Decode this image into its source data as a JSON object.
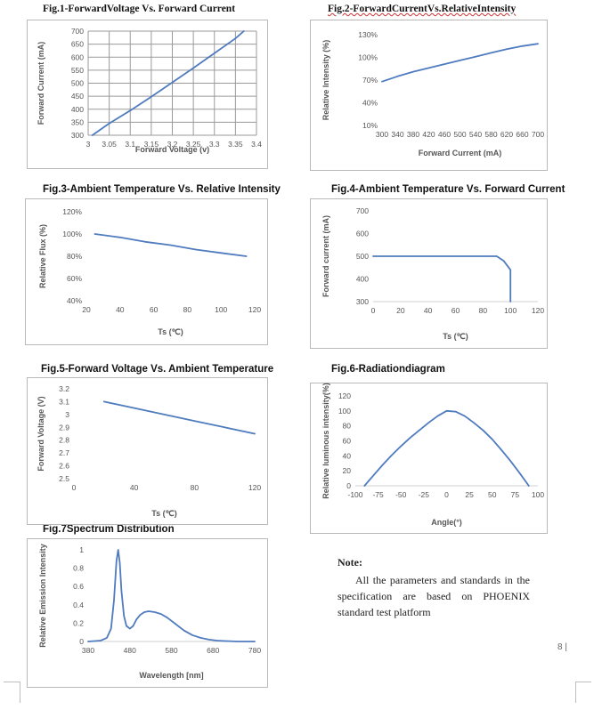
{
  "figures": {
    "fig1": {
      "title": "Fig.1-ForwardVoltage Vs. Forward Current"
    },
    "fig2": {
      "title": "Fig.2-ForwardCurrentVs.RelativeIntensity"
    },
    "fig3": {
      "title": "Fig.3-Ambient Temperature Vs. Relative Intensity"
    },
    "fig4": {
      "title": "Fig.4-Ambient Temperature Vs. Forward Current"
    },
    "fig5": {
      "title": "Fig.5-Forward Voltage Vs. Ambient Temperature"
    },
    "fig6": {
      "title": "Fig.6-Radiationdiagram"
    },
    "fig7": {
      "title": "Fig.7Spectrum Distribution"
    }
  },
  "note": {
    "label": "Note:",
    "text": "All the parameters and standards in the specification are based on PHOENIX standard test platform"
  },
  "page_number": "8 |",
  "chart_data": [
    {
      "id": "fig1",
      "type": "line",
      "xlabel": "Forward Voltage (v)",
      "ylabel": "Forward Current (mA)",
      "xlim": [
        3,
        3.4
      ],
      "ylim": [
        300,
        700
      ],
      "xticks": [
        "3",
        "3.05",
        "3.1",
        "3.15",
        "3.2",
        "3.25",
        "3.3",
        "3.35",
        "3.4"
      ],
      "yticks": [
        "300",
        "350",
        "400",
        "450",
        "500",
        "550",
        "600",
        "650",
        "700"
      ],
      "grid": true,
      "x": [
        3.01,
        3.05,
        3.1,
        3.15,
        3.2,
        3.25,
        3.3,
        3.35,
        3.37
      ],
      "y": [
        300,
        345,
        395,
        448,
        503,
        558,
        615,
        672,
        700
      ],
      "line_color": "#4f7bbf"
    },
    {
      "id": "fig2",
      "type": "line",
      "xlabel": "Forward Current (mA)",
      "ylabel": "Relative Intensity (%)",
      "xlim": [
        300,
        700
      ],
      "ylim": [
        10,
        130
      ],
      "xticks": [
        "300",
        "340",
        "380",
        "420",
        "460",
        "500",
        "540",
        "580",
        "620",
        "660",
        "700"
      ],
      "yticks": [
        "10%",
        "40%",
        "70%",
        "100%",
        "130%"
      ],
      "ytick_values": [
        10,
        40,
        70,
        100,
        130
      ],
      "grid": false,
      "x": [
        300,
        340,
        380,
        420,
        460,
        500,
        540,
        580,
        620,
        660,
        700
      ],
      "y": [
        68,
        75,
        81,
        86,
        91,
        96,
        101,
        106,
        111,
        115,
        118
      ],
      "line_color": "#4f7bbf"
    },
    {
      "id": "fig3",
      "type": "line",
      "xlabel": "Ts (℃)",
      "ylabel": "Relative Flux (%)",
      "xlim": [
        20,
        120
      ],
      "ylim": [
        40,
        120
      ],
      "xticks": [
        "20",
        "40",
        "60",
        "80",
        "100",
        "120"
      ],
      "yticks": [
        "40%",
        "60%",
        "80%",
        "100%",
        "120%"
      ],
      "ytick_values": [
        40,
        60,
        80,
        100,
        120
      ],
      "grid": false,
      "x": [
        25,
        40,
        55,
        70,
        85,
        100,
        115
      ],
      "y": [
        100,
        97,
        93,
        90,
        86,
        83,
        80
      ],
      "line_color": "#4f7bbf"
    },
    {
      "id": "fig4",
      "type": "line",
      "xlabel": "Ts (℃)",
      "ylabel": "Forward current (mA)",
      "xlim": [
        0,
        120
      ],
      "ylim": [
        300,
        700
      ],
      "xticks": [
        "0",
        "20",
        "40",
        "60",
        "80",
        "100",
        "120"
      ],
      "yticks": [
        "300",
        "400",
        "500",
        "600",
        "700"
      ],
      "grid": false,
      "x": [
        0,
        90,
        95,
        100,
        100
      ],
      "y": [
        500,
        500,
        480,
        440,
        300
      ],
      "line_color": "#4f7bbf"
    },
    {
      "id": "fig5",
      "type": "line",
      "xlabel": "Ts (℃)",
      "ylabel": "Forward Voltage (V)",
      "xlim": [
        0,
        120
      ],
      "ylim": [
        2.5,
        3.2
      ],
      "xticks": [
        "0",
        "40",
        "80",
        "120"
      ],
      "yticks": [
        "2.5",
        "2.6",
        "2.7",
        "2.8",
        "2.9",
        "3",
        "3.1",
        "3.2"
      ],
      "grid": false,
      "x": [
        20,
        40,
        60,
        80,
        100,
        120
      ],
      "y": [
        3.1,
        3.05,
        3.0,
        2.95,
        2.9,
        2.85
      ],
      "line_color": "#4f7bbf"
    },
    {
      "id": "fig6",
      "type": "line",
      "xlabel": "Angle(°)",
      "ylabel": "Relative luminous intensity(%)",
      "xlim": [
        -100,
        100
      ],
      "ylim": [
        0,
        120
      ],
      "xticks": [
        "-100",
        "-75",
        "-50",
        "-25",
        "0",
        "25",
        "50",
        "75",
        "100"
      ],
      "yticks": [
        "0",
        "20",
        "40",
        "60",
        "80",
        "100",
        "120"
      ],
      "grid": false,
      "x": [
        -90,
        -80,
        -70,
        -60,
        -50,
        -40,
        -30,
        -20,
        -10,
        0,
        10,
        20,
        30,
        40,
        50,
        60,
        70,
        80,
        90
      ],
      "y": [
        0,
        14,
        28,
        41,
        53,
        64,
        74,
        84,
        93,
        100,
        99,
        93,
        84,
        74,
        62,
        48,
        33,
        17,
        0
      ],
      "line_color": "#4f7bbf"
    },
    {
      "id": "fig7",
      "type": "line",
      "xlabel": "Wavelength [nm]",
      "ylabel": "Relative Emission Intensity",
      "xlim": [
        380,
        780
      ],
      "ylim": [
        0,
        1
      ],
      "xticks": [
        "380",
        "480",
        "580",
        "680",
        "780"
      ],
      "yticks": [
        "0",
        "0.2",
        "0.4",
        "0.6",
        "0.8",
        "1"
      ],
      "grid": false,
      "x": [
        380,
        410,
        425,
        435,
        442,
        448,
        452,
        456,
        460,
        466,
        472,
        480,
        488,
        496,
        505,
        515,
        525,
        540,
        555,
        570,
        590,
        610,
        630,
        650,
        670,
        690,
        710,
        740,
        780
      ],
      "y": [
        0,
        0.01,
        0.04,
        0.14,
        0.45,
        0.88,
        1.0,
        0.86,
        0.55,
        0.28,
        0.17,
        0.14,
        0.17,
        0.24,
        0.29,
        0.32,
        0.33,
        0.32,
        0.3,
        0.26,
        0.19,
        0.12,
        0.07,
        0.04,
        0.02,
        0.01,
        0.005,
        0,
        0
      ],
      "line_color": "#4f7bbf"
    }
  ]
}
